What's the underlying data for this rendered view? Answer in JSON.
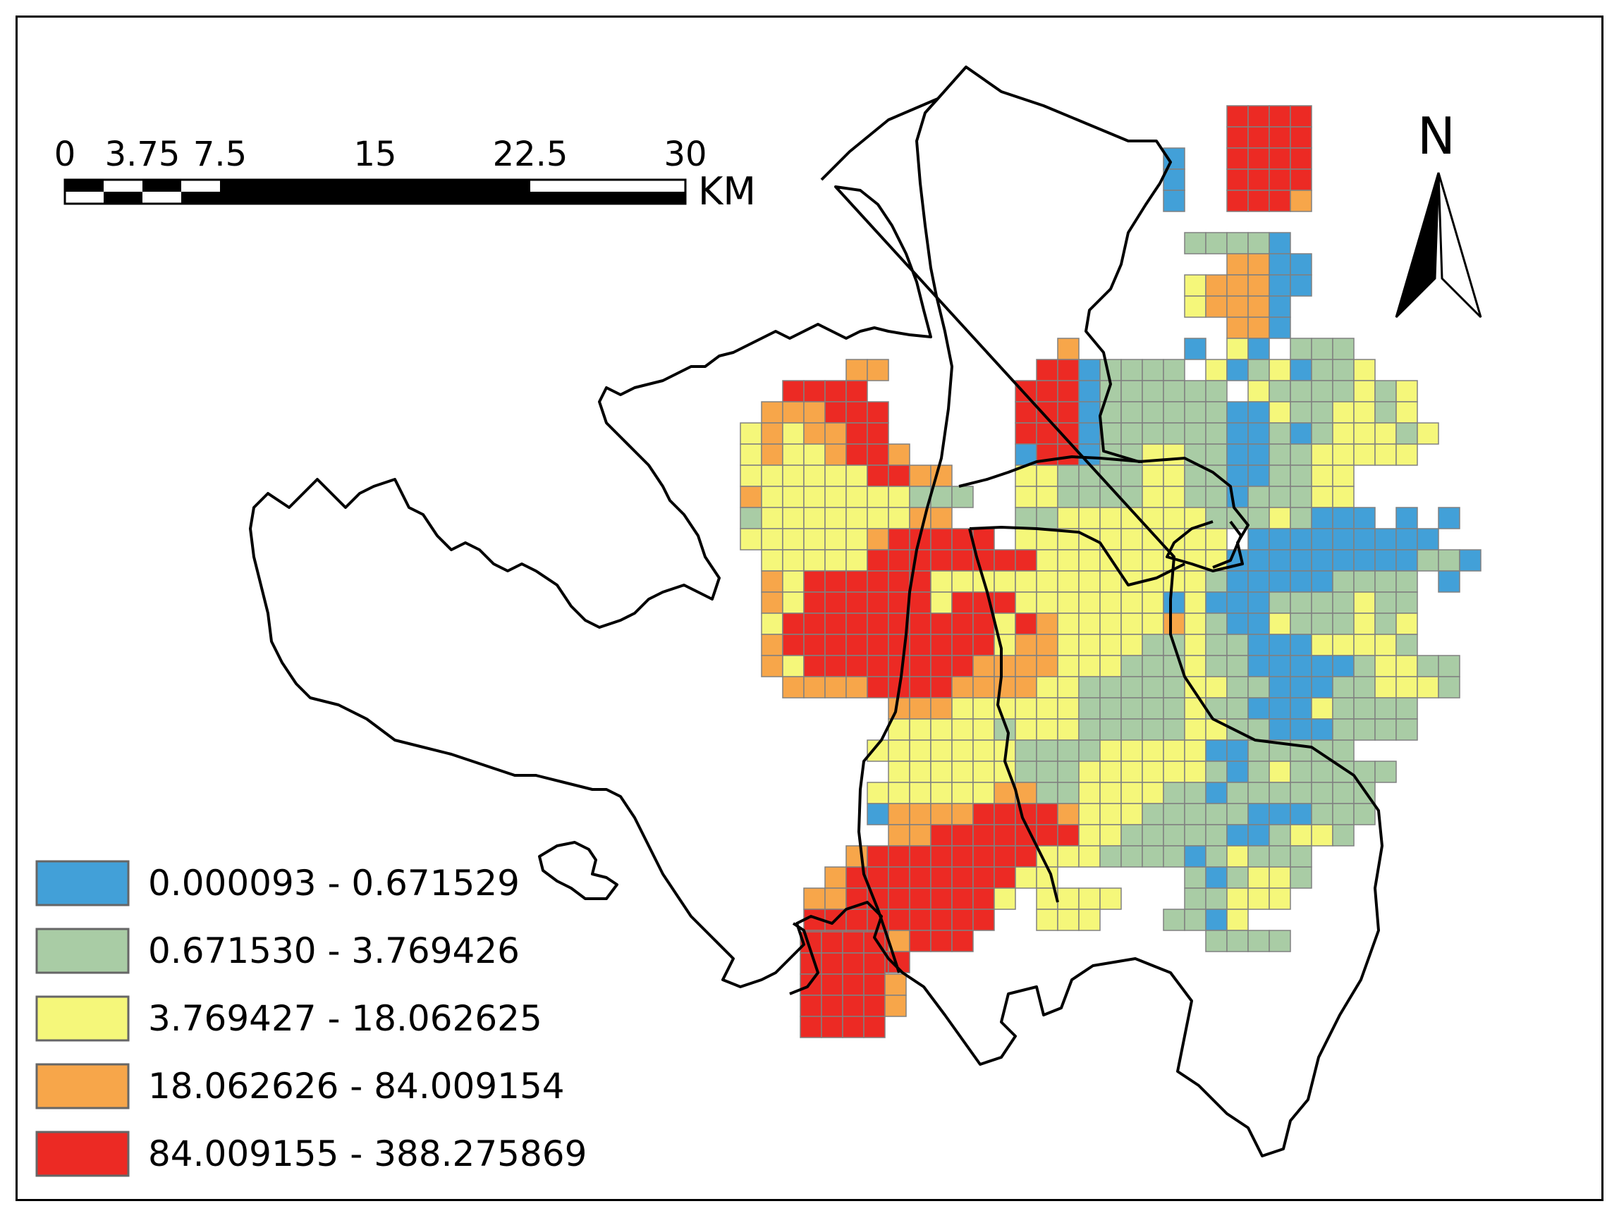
{
  "scale_bar": {
    "ticks": [
      "0",
      "3.75",
      "7.5",
      "15",
      "22.5",
      "30"
    ],
    "unit": "KM"
  },
  "north_arrow": {
    "label": "N"
  },
  "legend": [
    {
      "label": "0.000093 - 0.671529",
      "color": "#42a0d8"
    },
    {
      "label": "0.671530 - 3.769426",
      "color": "#a9cca5"
    },
    {
      "label": "3.769427 - 18.062625",
      "color": "#f5f77a"
    },
    {
      "label": "18.062626 - 84.009154",
      "color": "#f7a64a"
    },
    {
      "label": "84.009155 - 388.275869",
      "color": "#ec2a24"
    }
  ],
  "grid_color": "#808080",
  "boundary_color": "#000000"
}
